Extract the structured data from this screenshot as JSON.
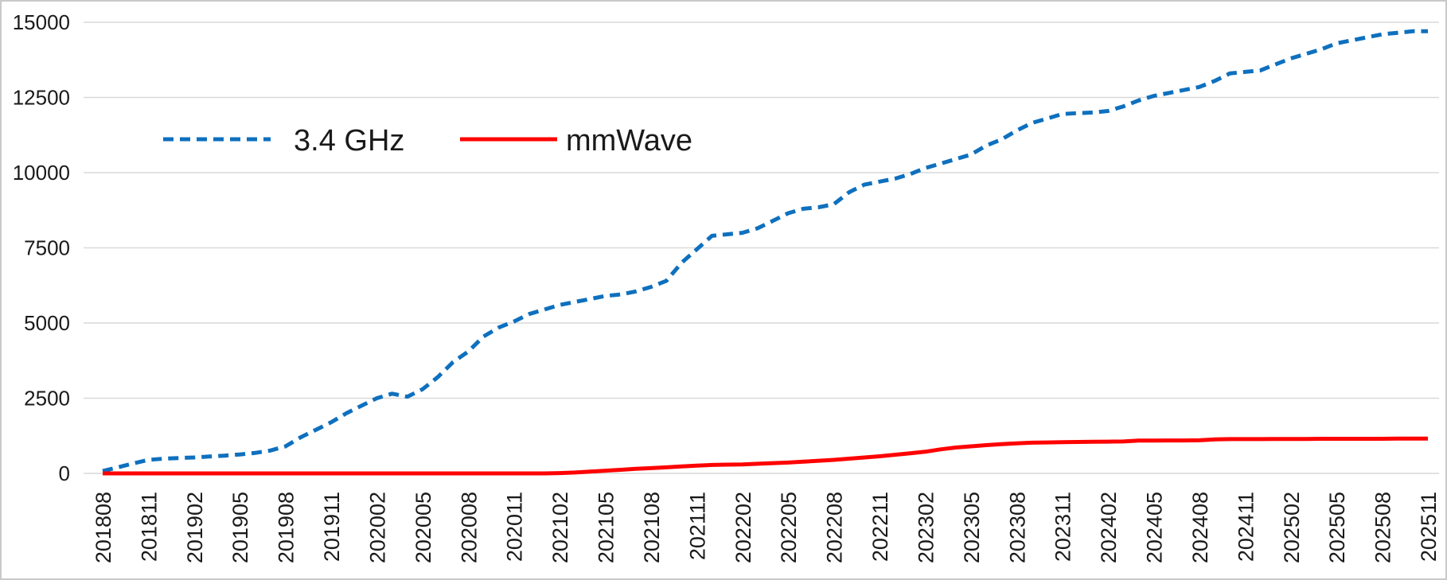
{
  "chart_data": {
    "type": "line",
    "title": "",
    "xlabel": "",
    "ylabel": "",
    "grid": true,
    "legend_position": "top-left-inset",
    "ylim": [
      0,
      15000
    ],
    "y_ticks": [
      0,
      2500,
      5000,
      7500,
      10000,
      12500,
      15000
    ],
    "x_tick_step": 3,
    "x_categories": [
      "201808",
      "201809",
      "201810",
      "201811",
      "201812",
      "201901",
      "201902",
      "201903",
      "201904",
      "201905",
      "201906",
      "201907",
      "201908",
      "201909",
      "201910",
      "201911",
      "201912",
      "202001",
      "202002",
      "202003",
      "202004",
      "202005",
      "202006",
      "202007",
      "202008",
      "202009",
      "202010",
      "202011",
      "202012",
      "202101",
      "202102",
      "202103",
      "202104",
      "202105",
      "202106",
      "202107",
      "202108",
      "202109",
      "202110",
      "202111",
      "202112",
      "202201",
      "202202",
      "202203",
      "202204",
      "202205",
      "202206",
      "202207",
      "202208",
      "202209",
      "202210",
      "202211",
      "202212",
      "202301",
      "202302",
      "202303",
      "202304",
      "202305",
      "202306",
      "202307",
      "202308",
      "202309",
      "202310",
      "202311",
      "202312",
      "202401",
      "202402",
      "202403",
      "202404",
      "202405",
      "202406",
      "202407",
      "202408",
      "202409",
      "202410",
      "202411",
      "202412",
      "202501",
      "202502",
      "202503",
      "202504",
      "202505",
      "202506",
      "202507",
      "202508",
      "202509",
      "202510",
      "202511"
    ],
    "series": [
      {
        "name": "3.4 GHz",
        "color": "#0e70be",
        "style": "dashed",
        "values": [
          80,
          200,
          330,
          450,
          490,
          510,
          530,
          560,
          590,
          630,
          680,
          760,
          900,
          1200,
          1450,
          1700,
          2000,
          2250,
          2500,
          2650,
          2550,
          2800,
          3200,
          3700,
          4050,
          4550,
          4850,
          5050,
          5300,
          5450,
          5600,
          5700,
          5800,
          5900,
          5950,
          6050,
          6200,
          6400,
          7000,
          7450,
          7900,
          7950,
          8000,
          8150,
          8400,
          8650,
          8800,
          8850,
          8950,
          9350,
          9600,
          9700,
          9800,
          9950,
          10150,
          10300,
          10450,
          10600,
          10900,
          11100,
          11400,
          11650,
          11800,
          11950,
          11980,
          12000,
          12050,
          12200,
          12400,
          12550,
          12650,
          12750,
          12850,
          13050,
          13300,
          13350,
          13400,
          13600,
          13800,
          13950,
          14100,
          14300,
          14400,
          14500,
          14600,
          14650,
          14700,
          14700
        ]
      },
      {
        "name": "mmWave",
        "color": "#ff0000",
        "style": "solid",
        "values": [
          0,
          0,
          0,
          0,
          0,
          0,
          0,
          0,
          0,
          0,
          0,
          0,
          0,
          0,
          0,
          0,
          0,
          0,
          0,
          0,
          0,
          0,
          0,
          0,
          0,
          0,
          0,
          0,
          0,
          0,
          10,
          30,
          60,
          90,
          120,
          150,
          175,
          200,
          230,
          260,
          280,
          290,
          300,
          320,
          340,
          360,
          390,
          420,
          450,
          490,
          530,
          570,
          620,
          670,
          720,
          800,
          860,
          900,
          940,
          970,
          1000,
          1020,
          1030,
          1040,
          1045,
          1050,
          1055,
          1060,
          1090,
          1090,
          1095,
          1095,
          1100,
          1130,
          1140,
          1140,
          1140,
          1145,
          1145,
          1145,
          1150,
          1150,
          1150,
          1150,
          1150,
          1155,
          1155,
          1160
        ]
      }
    ]
  },
  "legend": {
    "items": [
      {
        "label": "3.4 GHz"
      },
      {
        "label": "mmWave"
      }
    ]
  },
  "colors": {
    "series_blue": "#0e70be",
    "series_red": "#ff0000",
    "gridline": "#d9d9d9",
    "text": "#1a1a1a",
    "frame_border": "#c9c9c9",
    "background": "#ffffff"
  }
}
